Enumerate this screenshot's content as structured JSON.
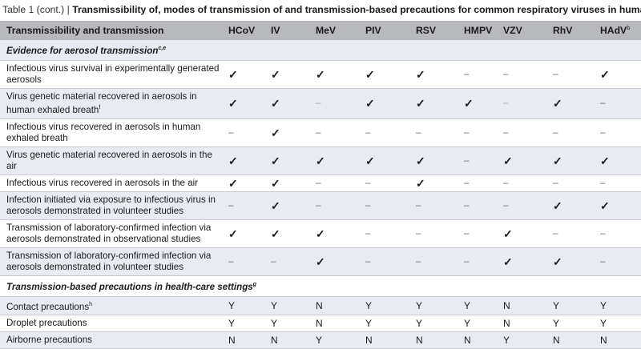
{
  "caption": {
    "label": "Table 1 (cont.)",
    "separator": " | ",
    "title": "Transmissibility of, modes of transmission of and transmission-based precautions for common respiratory viruses in humans"
  },
  "header": {
    "first_col": "Transmissibility and transmission",
    "columns": [
      "HCoV",
      "IV",
      "MeV",
      "PIV",
      "RSV",
      "HMPV",
      "VZV",
      "RhV",
      "HAdV"
    ],
    "last_col_sup": "b"
  },
  "sections": [
    {
      "title": "Evidence for aerosol transmission",
      "title_sup": "c,e",
      "rows": [
        {
          "label": "Infectious virus survival in experimentally generated aerosols",
          "sup": "",
          "values": [
            "✓",
            "✓",
            "✓",
            "✓",
            "✓",
            "–",
            "–",
            "–",
            "✓"
          ]
        },
        {
          "label": "Virus genetic material recovered in aerosols in human exhaled breath",
          "sup": "f",
          "values": [
            "✓",
            "✓",
            "–",
            "✓",
            "✓",
            "✓",
            "–",
            "✓",
            "–"
          ]
        },
        {
          "label": "Infectious virus recovered in aerosols in human exhaled breath",
          "sup": "",
          "values": [
            "–",
            "✓",
            "–",
            "–",
            "–",
            "–",
            "–",
            "–",
            "–"
          ]
        },
        {
          "label": "Virus genetic material recovered in aerosols in the air",
          "sup": "",
          "values": [
            "✓",
            "✓",
            "✓",
            "✓",
            "✓",
            "–",
            "✓",
            "✓",
            "✓"
          ]
        },
        {
          "label": "Infectious virus recovered in aerosols in the air",
          "sup": "",
          "values": [
            "✓",
            "✓",
            "–",
            "–",
            "✓",
            "–",
            "–",
            "–",
            "–"
          ]
        },
        {
          "label": "Infection initiated via exposure to infectious virus in aerosols demonstrated in volunteer studies",
          "sup": "",
          "values": [
            "–",
            "✓",
            "–",
            "–",
            "–",
            "–",
            "–",
            "✓",
            "✓"
          ]
        },
        {
          "label": "Transmission of laboratory-confirmed infection via aerosols demonstrated in observational studies",
          "sup": "",
          "values": [
            "✓",
            "✓",
            "✓",
            "–",
            "–",
            "–",
            "✓",
            "–",
            "–"
          ]
        },
        {
          "label": "Transmission of laboratory-confirmed infection via aerosols demonstrated in volunteer studies",
          "sup": "",
          "values": [
            "–",
            "–",
            "✓",
            "–",
            "–",
            "–",
            "✓",
            "✓",
            "–"
          ]
        }
      ]
    },
    {
      "title": "Transmission-based precautions in health-care settings",
      "title_sup": "g",
      "rows": [
        {
          "label": "Contact precautions",
          "sup": "h",
          "values": [
            "Y",
            "Y",
            "N",
            "Y",
            "Y",
            "Y",
            "N",
            "Y",
            "Y"
          ]
        },
        {
          "label": "Droplet precautions",
          "sup": "",
          "values": [
            "Y",
            "Y",
            "N",
            "Y",
            "Y",
            "Y",
            "N",
            "Y",
            "Y"
          ]
        },
        {
          "label": "Airborne precautions",
          "sup": "",
          "values": [
            "N",
            "N",
            "Y",
            "N",
            "N",
            "N",
            "Y",
            "N",
            "N"
          ]
        }
      ]
    }
  ]
}
